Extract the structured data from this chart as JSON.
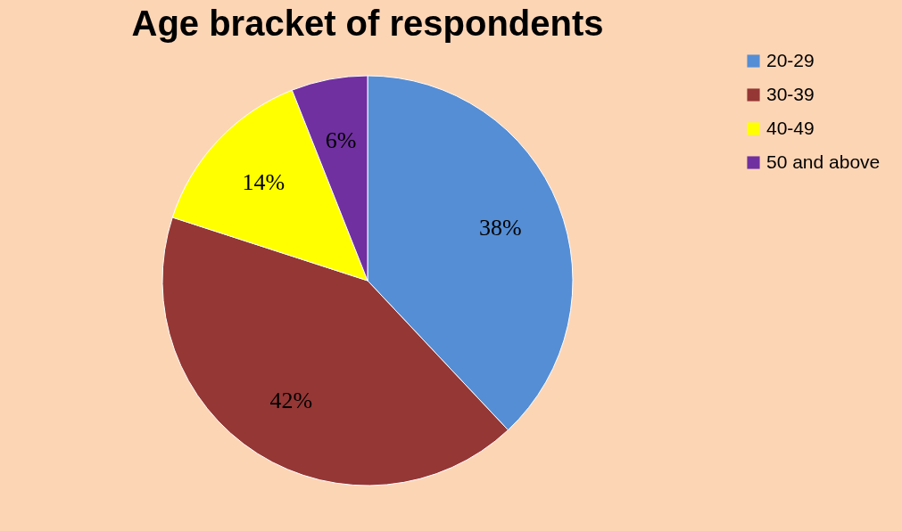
{
  "chart_data": {
    "type": "pie",
    "title": "Age bracket of respondents",
    "categories": [
      "20-29",
      "30-39",
      "40-49",
      "50 and above"
    ],
    "values": [
      38,
      42,
      14,
      6
    ],
    "colors": [
      "#558ed5",
      "#953735",
      "#ffff00",
      "#7030a0"
    ],
    "value_labels": [
      "38%",
      "42%",
      "14%",
      "6%"
    ],
    "legend": "right"
  }
}
